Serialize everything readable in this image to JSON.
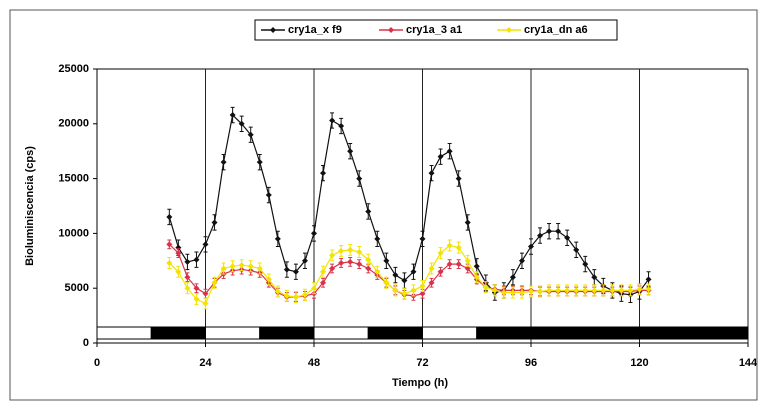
{
  "chart_data": {
    "type": "line",
    "xlabel": "Tiempo (h)",
    "ylabel": "Bioluminiscencia (cps)",
    "x": [
      16,
      18,
      20,
      22,
      24,
      26,
      28,
      30,
      32,
      34,
      36,
      38,
      40,
      42,
      44,
      46,
      48,
      50,
      52,
      54,
      56,
      58,
      60,
      62,
      64,
      66,
      68,
      70,
      72,
      74,
      76,
      78,
      80,
      82,
      84,
      86,
      88,
      90,
      92,
      94,
      96,
      98,
      100,
      102,
      104,
      106,
      108,
      110,
      112,
      114,
      116,
      118,
      120,
      122
    ],
    "series": [
      {
        "name": "cry1a_x f9",
        "color": "#111111",
        "error": 700,
        "values": [
          11500,
          8700,
          7400,
          7600,
          9000,
          11000,
          16500,
          20800,
          20000,
          19000,
          16500,
          13500,
          9500,
          6700,
          6500,
          7500,
          10000,
          15500,
          20300,
          19800,
          17500,
          15000,
          12000,
          9500,
          7500,
          6200,
          5700,
          6500,
          9500,
          15500,
          17000,
          17500,
          15000,
          11000,
          7000,
          5500,
          4600,
          4800,
          6000,
          7500,
          8800,
          9800,
          10200,
          10200,
          9600,
          8500,
          7200,
          6000,
          5200,
          4800,
          4500,
          4400,
          4700,
          5800
        ]
      },
      {
        "name": "cry1a_3 a1",
        "color": "#d8334a",
        "error": 400,
        "values": [
          9000,
          8200,
          6000,
          5000,
          4500,
          5500,
          6300,
          6600,
          6700,
          6600,
          6400,
          5500,
          4600,
          4200,
          4200,
          4300,
          4500,
          5500,
          6800,
          7300,
          7400,
          7200,
          6800,
          6200,
          5500,
          4800,
          4400,
          4300,
          4500,
          5500,
          6500,
          7200,
          7200,
          6800,
          5800,
          5100,
          4900,
          4800,
          4800,
          4800,
          4800,
          4700,
          4700,
          4700,
          4700,
          4700,
          4700,
          4700,
          4700,
          4700,
          4700,
          4700,
          4800,
          4800
        ]
      },
      {
        "name": "cry1a_dn a6",
        "color": "#f2e400",
        "error": 500,
        "values": [
          7300,
          6500,
          5000,
          4000,
          3600,
          5500,
          6800,
          7000,
          7100,
          7000,
          6800,
          5800,
          4700,
          4300,
          4200,
          4400,
          5000,
          6500,
          8000,
          8400,
          8500,
          8300,
          7600,
          6500,
          5500,
          4800,
          4500,
          4800,
          5200,
          6800,
          8200,
          8900,
          8700,
          7500,
          6000,
          5100,
          4800,
          4600,
          4600,
          4600,
          4700,
          4700,
          4800,
          4800,
          4800,
          4800,
          4800,
          4800,
          4800,
          4800,
          4800,
          4800,
          4900,
          4900
        ]
      }
    ],
    "xlim": [
      0,
      144
    ],
    "xticks": [
      0,
      24,
      48,
      72,
      96,
      120,
      144
    ],
    "ylim": [
      0,
      25000
    ],
    "yticks": [
      0,
      5000,
      10000,
      15000,
      20000,
      25000
    ],
    "grid": "x",
    "legend": "top",
    "photoperiod": {
      "edges": [
        0,
        12,
        24,
        36,
        48,
        60,
        72,
        84,
        144
      ],
      "colors": [
        "#ffffff",
        "#000000",
        "#ffffff",
        "#000000",
        "#ffffff",
        "#000000",
        "#ffffff",
        "#000000"
      ]
    }
  }
}
